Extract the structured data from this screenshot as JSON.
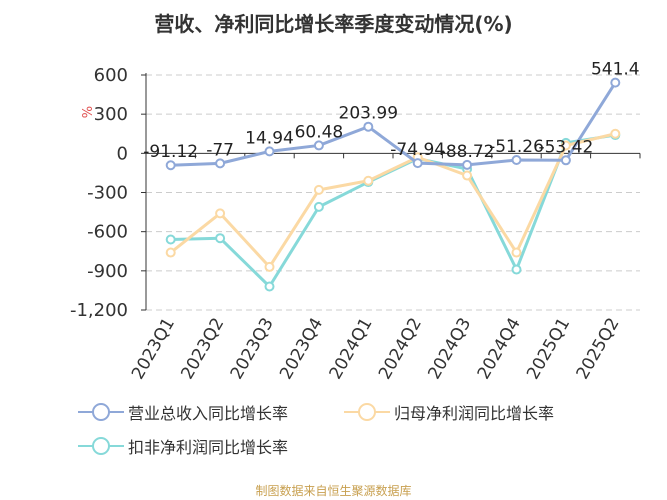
{
  "chart_data": {
    "type": "line",
    "title": "营收、净利同比增长率季度变动情况(%)",
    "ylabel": "%",
    "ylim": [
      -1200,
      600
    ],
    "yticks": [
      600,
      300,
      0,
      -300,
      -600,
      -900,
      -1200
    ],
    "ytick_labels": [
      "600",
      "300",
      "0",
      "-300",
      "-600",
      "-900",
      "-1,200"
    ],
    "categories": [
      "2023Q1",
      "2023Q2",
      "2023Q3",
      "2023Q4",
      "2024Q1",
      "2024Q2",
      "2024Q3",
      "2024Q4",
      "2025Q1",
      "2025Q2"
    ],
    "grid": true,
    "legend_position": "bottom",
    "series": [
      {
        "name": "营业总收入同比增长率",
        "color": "#8fa8d8",
        "values": [
          -91.12,
          -77,
          14.94,
          60.48,
          203.99,
          -74.94,
          -88.72,
          -51.26,
          -53.42,
          541.4
        ],
        "labels": [
          "-91.12",
          "-77",
          "14.94",
          "60.48",
          "203.99",
          "-74.94",
          "-88.72",
          "-51.26",
          "-53.42",
          "541.4"
        ]
      },
      {
        "name": "归母净利润同比增长率",
        "color": "#fbd9a4",
        "values": [
          -760,
          -460,
          -870,
          -280,
          -210,
          -30,
          -170,
          -760,
          60,
          150
        ]
      },
      {
        "name": "扣非净利润同比增长率",
        "color": "#86d9d9",
        "values": [
          -660,
          -650,
          -1020,
          -410,
          -220,
          -40,
          -120,
          -890,
          80,
          140
        ]
      }
    ]
  },
  "source_note": "制图数据来自恒生聚源数据库"
}
